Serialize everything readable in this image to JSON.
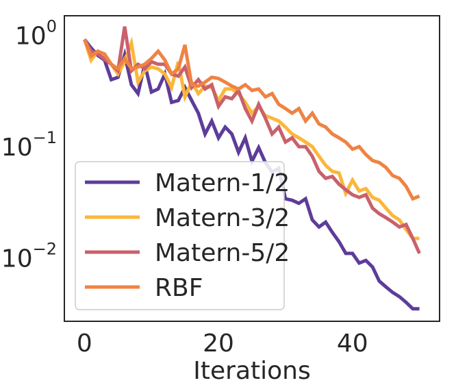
{
  "chart_data": {
    "type": "line",
    "xlabel": "Iterations",
    "ylabel": "",
    "xlim": [
      -3,
      53
    ],
    "ylim": [
      0.0027,
      1.5
    ],
    "yscale": "log",
    "xticks": [
      0,
      20,
      40
    ],
    "yticks": [
      {
        "value": 1,
        "base": "10",
        "exp": "0"
      },
      {
        "value": 0.1,
        "base": "10",
        "exp": "−1"
      },
      {
        "value": 0.01,
        "base": "10",
        "exp": "−2"
      }
    ],
    "grid": false,
    "legend": "lower-left",
    "x": [
      0,
      1,
      2,
      3,
      4,
      5,
      6,
      7,
      8,
      9,
      10,
      11,
      12,
      13,
      14,
      15,
      16,
      17,
      18,
      19,
      20,
      21,
      22,
      23,
      24,
      25,
      26,
      27,
      28,
      29,
      30,
      31,
      32,
      33,
      34,
      35,
      36,
      37,
      38,
      39,
      40,
      41,
      42,
      43,
      44,
      45,
      46,
      47,
      48,
      49,
      50
    ],
    "series": [
      {
        "name": "Matern-1/2",
        "color": "#5e3c99",
        "values": [
          0.92,
          0.77,
          0.66,
          0.6,
          0.4,
          0.42,
          0.67,
          0.36,
          0.3,
          0.55,
          0.31,
          0.33,
          0.45,
          0.25,
          0.26,
          0.34,
          0.26,
          0.2,
          0.13,
          0.17,
          0.12,
          0.15,
          0.13,
          0.089,
          0.12,
          0.074,
          0.098,
          0.072,
          0.059,
          0.064,
          0.034,
          0.033,
          0.031,
          0.034,
          0.022,
          0.019,
          0.021,
          0.017,
          0.014,
          0.011,
          0.011,
          0.009,
          0.0095,
          0.0083,
          0.0062,
          0.0055,
          0.0049,
          0.0045,
          0.004,
          0.0035,
          0.0035
        ]
      },
      {
        "name": "Matern-3/2",
        "color": "#fbb73a",
        "values": [
          0.92,
          0.6,
          0.72,
          0.64,
          0.55,
          0.45,
          0.58,
          0.85,
          0.38,
          0.48,
          0.52,
          0.5,
          0.45,
          0.34,
          0.58,
          0.28,
          0.38,
          0.3,
          0.35,
          0.34,
          0.26,
          0.33,
          0.33,
          0.3,
          0.25,
          0.2,
          0.23,
          0.19,
          0.18,
          0.17,
          0.15,
          0.13,
          0.12,
          0.11,
          0.1,
          0.082,
          0.068,
          0.06,
          0.058,
          0.038,
          0.05,
          0.04,
          0.042,
          0.035,
          0.033,
          0.028,
          0.024,
          0.022,
          0.018,
          0.015,
          0.015
        ]
      },
      {
        "name": "Matern-5/2",
        "color": "#c9616c",
        "values": [
          0.92,
          0.72,
          0.68,
          0.61,
          0.55,
          0.48,
          1.2,
          0.48,
          0.55,
          0.5,
          0.58,
          0.55,
          0.55,
          0.45,
          0.43,
          0.52,
          0.34,
          0.4,
          0.33,
          0.36,
          0.23,
          0.28,
          0.27,
          0.32,
          0.22,
          0.17,
          0.24,
          0.18,
          0.13,
          0.15,
          0.11,
          0.12,
          0.1,
          0.1,
          0.082,
          0.06,
          0.052,
          0.054,
          0.046,
          0.041,
          0.037,
          0.035,
          0.037,
          0.028,
          0.025,
          0.023,
          0.021,
          0.019,
          0.02,
          0.015,
          0.011
        ]
      },
      {
        "name": "RBF",
        "color": "#ef8343",
        "values": [
          0.92,
          0.65,
          0.72,
          0.68,
          0.55,
          0.5,
          0.62,
          0.5,
          0.52,
          0.55,
          0.62,
          0.72,
          0.6,
          0.45,
          0.5,
          0.82,
          0.36,
          0.35,
          0.38,
          0.42,
          0.41,
          0.38,
          0.35,
          0.33,
          0.36,
          0.32,
          0.33,
          0.28,
          0.3,
          0.24,
          0.22,
          0.2,
          0.22,
          0.17,
          0.2,
          0.16,
          0.15,
          0.13,
          0.12,
          0.11,
          0.095,
          0.1,
          0.085,
          0.075,
          0.072,
          0.065,
          0.055,
          0.052,
          0.044,
          0.034,
          0.036
        ]
      }
    ]
  }
}
